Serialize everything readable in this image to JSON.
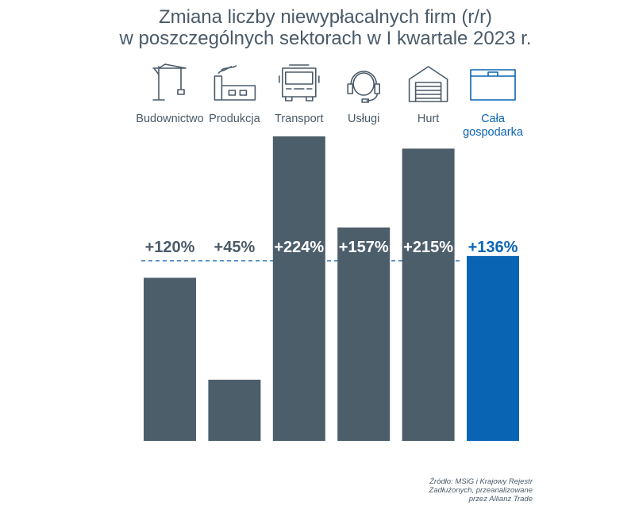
{
  "title": {
    "line1": "Zmiana liczby niewypłacalnych firm (r/r)",
    "line2": "w poszczególnych sektorach w I kwartale 2023 r."
  },
  "colors": {
    "bar": "#4d5e6b",
    "highlight": "#0a64b4",
    "label_dark": "#4a5a68",
    "icon": "#4a5a68",
    "reference_line": "#3a7fc0"
  },
  "chart_data": {
    "type": "bar",
    "categories": [
      "Budownictwo",
      "Produkcja",
      "Transport",
      "Usługi",
      "Hurt",
      "Cała gospodarka"
    ],
    "category_lines": [
      [
        "Budownictwo"
      ],
      [
        "Produkcja"
      ],
      [
        "Transport"
      ],
      [
        "Usługi"
      ],
      [
        "Hurt"
      ],
      [
        "Cała",
        "gospodarka"
      ]
    ],
    "values": [
      120,
      45,
      224,
      157,
      215,
      136
    ],
    "value_labels": [
      "+120%",
      "+45%",
      "+224%",
      "+157%",
      "+215%",
      "+136%"
    ],
    "highlight_index": 5,
    "reference_value": 136,
    "icons": [
      "crane-icon",
      "factory-icon",
      "truck-icon",
      "headset-icon",
      "warehouse-icon",
      "wallet-icon"
    ],
    "xlabel": "",
    "ylabel": "",
    "legend": false,
    "grid": false
  },
  "source": {
    "line1": "Źródło: MSiG i Krajowy Rejestr",
    "line2": "Zadłużonych, przeanalizowane",
    "line3": "przez Allianz Trade"
  }
}
